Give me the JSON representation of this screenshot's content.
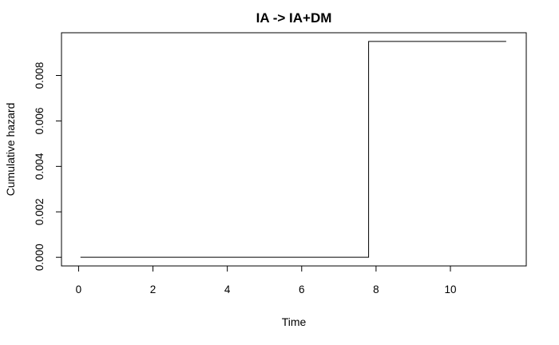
{
  "chart_data": {
    "type": "line",
    "step": true,
    "title": "IA -> IA+DM",
    "xlabel": "Time",
    "ylabel": "Cumulative hazard",
    "xlim": [
      -0.46,
      12.04
    ],
    "ylim": [
      -0.00038,
      0.00988
    ],
    "xticks": [
      0,
      2,
      4,
      6,
      8,
      10
    ],
    "xtick_labels": [
      "0",
      "2",
      "4",
      "6",
      "8",
      "10"
    ],
    "yticks": [
      0,
      0.002,
      0.004,
      0.006,
      0.008
    ],
    "ytick_labels": [
      "0.000",
      "0.002",
      "0.004",
      "0.006",
      "0.008"
    ],
    "grid": false,
    "series": [
      {
        "x": [
          0.05,
          7.8,
          11.5
        ],
        "y": [
          0,
          0.0095,
          0.0095
        ],
        "color": "#000000"
      }
    ]
  }
}
